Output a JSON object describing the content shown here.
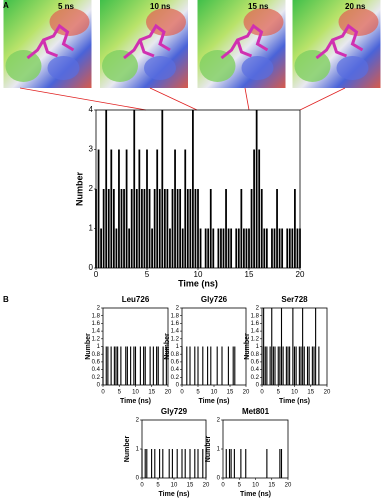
{
  "panel_labels": [
    "A",
    "B"
  ],
  "snapshots": [
    "5 ns",
    "10 ns",
    "15 ns",
    "20 ns"
  ],
  "chart_data": [
    {
      "type": "spike",
      "xlabel": "Time (ns)",
      "ylabel": "Number",
      "color": "#000000",
      "xlim": [
        0,
        20
      ],
      "ylim": [
        0,
        4
      ],
      "xticks": [
        0,
        5,
        10,
        15,
        20
      ],
      "yticks": [
        0,
        1,
        2,
        3,
        4
      ],
      "x": [
        0,
        0.25,
        0.5,
        0.75,
        1,
        1.25,
        1.5,
        1.75,
        2,
        2.25,
        2.5,
        2.75,
        3,
        3.25,
        3.5,
        3.75,
        4,
        4.25,
        4.5,
        4.75,
        5,
        5.25,
        5.5,
        5.75,
        6,
        6.25,
        6.5,
        6.75,
        7,
        7.25,
        7.5,
        7.75,
        8,
        8.25,
        8.5,
        8.75,
        9,
        9.25,
        9.5,
        9.75,
        10,
        10.25,
        10.5,
        10.75,
        11,
        11.25,
        11.5,
        11.75,
        12,
        12.25,
        12.5,
        12.75,
        13,
        13.25,
        13.5,
        13.75,
        14,
        14.25,
        14.5,
        14.75,
        15,
        15.25,
        15.5,
        15.75,
        16,
        16.25,
        16.5,
        16.75,
        17,
        17.25,
        17.5,
        17.75,
        18,
        18.25,
        18.5,
        18.75,
        19,
        19.25,
        19.5,
        19.75,
        20
      ],
      "values": [
        2,
        3,
        1,
        2,
        4,
        2,
        3,
        2,
        1,
        3,
        2,
        2,
        3,
        1,
        2,
        4,
        2,
        3,
        2,
        2,
        3,
        2,
        1,
        2,
        3,
        2,
        4,
        2,
        2,
        1,
        2,
        3,
        2,
        2,
        1,
        3,
        2,
        2,
        4,
        2,
        2,
        1,
        0,
        1,
        1,
        2,
        1,
        0,
        1,
        1,
        1,
        2,
        1,
        1,
        0,
        1,
        1,
        2,
        1,
        1,
        1,
        2,
        3,
        4,
        3,
        2,
        1,
        1,
        0,
        1,
        1,
        2,
        1,
        1,
        0,
        1,
        1,
        1,
        2,
        1,
        1
      ]
    },
    {
      "type": "spike",
      "title": "Leu726",
      "xlabel": "Time (ns)",
      "ylabel": "Number",
      "color": "#000000",
      "xlim": [
        0,
        20
      ],
      "ylim": [
        0,
        2
      ],
      "xticks": [
        0,
        5,
        10,
        15,
        20
      ],
      "yticks": [
        0,
        0.2,
        0.4,
        0.6,
        0.8,
        1,
        1.2,
        1.4,
        1.6,
        1.8,
        2
      ],
      "x": [
        0,
        0.5,
        1,
        1.5,
        2,
        2.5,
        3,
        3.5,
        4,
        4.5,
        5,
        5.5,
        6,
        6.5,
        7,
        7.5,
        8,
        8.5,
        9,
        9.5,
        10,
        10.5,
        11,
        11.5,
        12,
        12.5,
        13,
        13.5,
        14,
        14.5,
        15,
        15.5,
        16,
        16.5,
        17,
        17.5,
        18,
        18.5,
        19,
        19.5,
        20
      ],
      "values": [
        1,
        0,
        1,
        1,
        0,
        1,
        0,
        1,
        1,
        1,
        0,
        1,
        0,
        0,
        1,
        1,
        0,
        1,
        0,
        1,
        1,
        0,
        0,
        1,
        0,
        1,
        1,
        0,
        0,
        1,
        0,
        1,
        0,
        1,
        1,
        0,
        0,
        1,
        0,
        1,
        0
      ]
    },
    {
      "type": "spike",
      "title": "Gly726",
      "xlabel": "Time (ns)",
      "ylabel": "Number",
      "color": "#000000",
      "xlim": [
        0,
        20
      ],
      "ylim": [
        0,
        2
      ],
      "xticks": [
        0,
        5,
        10,
        15,
        20
      ],
      "yticks": [
        0,
        0.2,
        0.4,
        0.6,
        0.8,
        1,
        1.2,
        1.4,
        1.6,
        1.8,
        2
      ],
      "x": [
        0,
        0.5,
        1,
        1.5,
        2,
        2.5,
        3,
        3.5,
        4,
        4.5,
        5,
        5.5,
        6,
        6.5,
        7,
        7.5,
        8,
        8.5,
        9,
        9.5,
        10,
        10.5,
        11,
        11.5,
        12,
        12.5,
        13,
        13.5,
        14,
        14.5,
        15,
        15.5,
        16,
        16.5,
        17,
        17.5,
        18,
        18.5,
        19,
        19.5,
        20
      ],
      "values": [
        1,
        0,
        0,
        1,
        0,
        1,
        0,
        0,
        1,
        0,
        1,
        0,
        0,
        1,
        0,
        0,
        1,
        0,
        1,
        0,
        0,
        0,
        1,
        0,
        0,
        1,
        0,
        0,
        0,
        1,
        0,
        0,
        1,
        1,
        0,
        0,
        0,
        0,
        0,
        0,
        0
      ]
    },
    {
      "type": "spike",
      "title": "Ser728",
      "xlabel": "Time (ns)",
      "ylabel": "Number",
      "color": "#000000",
      "xlim": [
        0,
        20
      ],
      "ylim": [
        0,
        2
      ],
      "xticks": [
        0,
        5,
        10,
        15,
        20
      ],
      "yticks": [
        0,
        0.2,
        0.4,
        0.6,
        0.8,
        1,
        1.2,
        1.4,
        1.6,
        1.8,
        2
      ],
      "x": [
        0,
        0.5,
        1,
        1.5,
        2,
        2.5,
        3,
        3.5,
        4,
        4.5,
        5,
        5.5,
        6,
        6.5,
        7,
        7.5,
        8,
        8.5,
        9,
        9.5,
        10,
        10.5,
        11,
        11.5,
        12,
        12.5,
        13,
        13.5,
        14,
        14.5,
        15,
        15.5,
        16,
        16.5,
        17,
        17.5,
        18,
        18.5,
        19,
        19.5,
        20
      ],
      "values": [
        1,
        2,
        1,
        1,
        0,
        1,
        2,
        1,
        1,
        0,
        1,
        1,
        2,
        1,
        0,
        1,
        1,
        1,
        0,
        2,
        1,
        1,
        0,
        1,
        1,
        2,
        1,
        0,
        1,
        1,
        0,
        1,
        1,
        2,
        0,
        1,
        0,
        0,
        0,
        0,
        0
      ]
    },
    {
      "type": "spike",
      "title": "Gly729",
      "xlabel": "Time (ns)",
      "ylabel": "Number",
      "color": "#000000",
      "xlim": [
        0,
        20
      ],
      "ylim": [
        0,
        2
      ],
      "xticks": [
        0,
        5,
        10,
        15,
        20
      ],
      "yticks": [
        0,
        1,
        2
      ],
      "x": [
        0,
        0.5,
        1,
        1.5,
        2,
        2.5,
        3,
        3.5,
        4,
        4.5,
        5,
        5.5,
        6,
        6.5,
        7,
        7.5,
        8,
        8.5,
        9,
        9.5,
        10,
        10.5,
        11,
        11.5,
        12,
        12.5,
        13,
        13.5,
        14,
        14.5,
        15,
        15.5,
        16,
        16.5,
        17,
        17.5,
        18,
        18.5,
        19,
        19.5,
        20
      ],
      "values": [
        1,
        0,
        1,
        1,
        0,
        0,
        1,
        0,
        1,
        0,
        0,
        1,
        0,
        1,
        0,
        0,
        0,
        1,
        0,
        1,
        0,
        0,
        1,
        0,
        0,
        1,
        0,
        1,
        0,
        0,
        1,
        0,
        0,
        1,
        0,
        1,
        0,
        0,
        1,
        0,
        1
      ]
    },
    {
      "type": "spike",
      "title": "Met801",
      "xlabel": "Time (ns)",
      "ylabel": "Number",
      "color": "#000000",
      "xlim": [
        0,
        20
      ],
      "ylim": [
        0,
        2
      ],
      "xticks": [
        0,
        5,
        10,
        15,
        20
      ],
      "yticks": [
        0,
        1,
        2
      ],
      "x": [
        0,
        0.5,
        1,
        1.5,
        2,
        2.5,
        3,
        3.5,
        4,
        4.5,
        5,
        5.5,
        6,
        6.5,
        7,
        7.5,
        8,
        8.5,
        9,
        9.5,
        10,
        10.5,
        11,
        11.5,
        12,
        12.5,
        13,
        13.5,
        14,
        14.5,
        15,
        15.5,
        16,
        16.5,
        17,
        17.5,
        18,
        18.5,
        19,
        19.5,
        20
      ],
      "values": [
        0,
        0,
        1,
        0,
        1,
        1,
        0,
        1,
        0,
        0,
        0,
        1,
        0,
        0,
        1,
        0,
        0,
        0,
        0,
        0,
        0,
        0,
        0,
        0,
        0,
        0,
        0,
        1,
        0,
        0,
        0,
        0,
        0,
        0,
        0,
        1,
        1,
        0,
        0,
        0,
        0
      ]
    }
  ]
}
